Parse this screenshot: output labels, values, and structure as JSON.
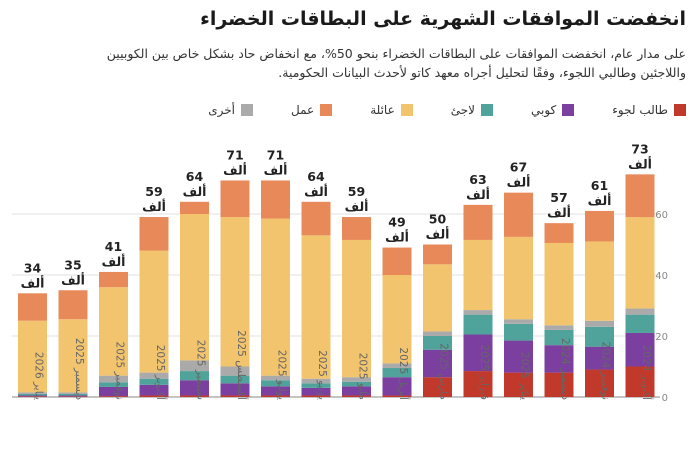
{
  "header": {
    "title": "انخفضت الموافقات الشهرية على البطاقات الخضراء",
    "subtitle_line1": "على مدار عام، انخفضت الموافقات على البطاقات الخضراء بنحو 50%، مع انخفاض حاد بشكل خاص بين الكوبيين",
    "subtitle_line2": "واللاجئين وطالبي اللجوء، وفقًا لتحليل أجراه معهد كاتو لأحدث البيانات الحكومية."
  },
  "chart_data": {
    "type": "bar",
    "stacked": true,
    "ylim": [
      0,
      75
    ],
    "yticks": [
      {
        "value": 0,
        "label": "0"
      },
      {
        "value": 20,
        "label": "20 ألف"
      },
      {
        "value": 40,
        "label": "40 ألف"
      },
      {
        "value": 60,
        "label": "60 ألف"
      }
    ],
    "categories": [
      "أكتوبر 2024",
      "نوفمبر 2024",
      "ديسمبر 2024",
      "يناير 2025",
      "فبراير 2025",
      "مارس 2025",
      "أبريل 2025",
      "مايو 2025",
      "يونيو 2025",
      "يوليو 2025",
      "أغسطس 2025",
      "سبتمبر 2025",
      "أكتوبر 2025",
      "نوفمبر 2025",
      "ديسمبر 2025",
      "يناير 2026"
    ],
    "totals": [
      73,
      61,
      57,
      67,
      63,
      50,
      49,
      59,
      64,
      71,
      71,
      64,
      59,
      41,
      35,
      34
    ],
    "total_labels": [
      "73\nألف",
      "61\nألف",
      "57\nألف",
      "67\nألف",
      "63\nألف",
      "50\nألف",
      "49\nألف",
      "59\nألف",
      "64\nألف",
      "71\nألف",
      "71\nألف",
      "64\nألف",
      "59\nألف",
      "41\nألف",
      "35\nألف",
      "34\nألف"
    ],
    "series": [
      {
        "name": "طالب لجوء",
        "color": "#c0392b",
        "values": [
          10,
          9,
          8,
          8,
          8.5,
          6.5,
          0.5,
          0.5,
          0.5,
          0.5,
          0.5,
          0.5,
          0.5,
          0.3,
          0.2,
          0.2
        ]
      },
      {
        "name": "كوبي",
        "color": "#7b3fa0",
        "values": [
          11,
          7.5,
          9,
          10.5,
          12,
          9,
          6,
          3,
          2.5,
          3,
          4,
          5,
          3.5,
          3,
          0.3,
          0.3
        ]
      },
      {
        "name": "لاجئ",
        "color": "#4fa39a",
        "values": [
          6,
          6.5,
          5,
          5.5,
          6.5,
          4.5,
          3,
          1.5,
          1.5,
          2,
          2.5,
          3,
          2,
          1.5,
          0.5,
          0.5
        ]
      },
      {
        "name": "أخرى",
        "color": "#aaaaaa",
        "values": [
          2,
          2,
          1.5,
          1.5,
          1.5,
          1.5,
          1.5,
          1.5,
          1.5,
          1.5,
          3,
          3.5,
          2,
          2.2,
          0.5,
          0.5
        ]
      },
      {
        "name": "عائلة",
        "color": "#f2c46d",
        "values": [
          30,
          26,
          27,
          27,
          23,
          22,
          29,
          45,
          47,
          51.5,
          49,
          48,
          40,
          29,
          24,
          23.5
        ]
      },
      {
        "name": "عمل",
        "color": "#e8895a",
        "values": [
          14,
          10,
          6.5,
          14.5,
          11.5,
          6.5,
          9,
          7.5,
          11,
          12.5,
          12,
          4,
          11,
          5,
          9.5,
          9
        ]
      }
    ]
  }
}
